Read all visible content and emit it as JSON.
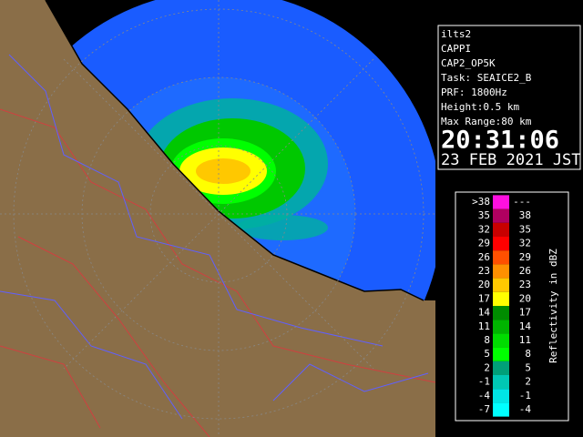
{
  "info": {
    "lines": [
      "ilts2",
      "CAPPI",
      "CAP2_OP5K",
      "Task: SEAICE2_B",
      "PRF: 1800Hz",
      "Height:0.5 km",
      "Max Range:80 km"
    ],
    "time": "20:31:06",
    "date": "23 FEB 2021 JST"
  },
  "legend": {
    "title": "Reflectivity in dBZ",
    "rows": [
      {
        "low": ">38",
        "high": "---",
        "color": "#ff10e0"
      },
      {
        "low": "35",
        "high": "38",
        "color": "#b00060"
      },
      {
        "low": "32",
        "high": "35",
        "color": "#c80000"
      },
      {
        "low": "29",
        "high": "32",
        "color": "#ff0000"
      },
      {
        "low": "26",
        "high": "29",
        "color": "#ff5000"
      },
      {
        "low": "23",
        "high": "26",
        "color": "#ff9000"
      },
      {
        "low": "20",
        "high": "23",
        "color": "#ffc800"
      },
      {
        "low": "17",
        "high": "20",
        "color": "#ffff00"
      },
      {
        "low": "14",
        "high": "17",
        "color": "#008c00"
      },
      {
        "low": "11",
        "high": "14",
        "color": "#00b400"
      },
      {
        "low": "8",
        "high": "11",
        "color": "#00dc00"
      },
      {
        "low": "5",
        "high": "8",
        "color": "#00ff00"
      },
      {
        "low": "2",
        "high": "5",
        "color": "#00a078"
      },
      {
        "low": "-1",
        "high": "2",
        "color": "#00c8b4"
      },
      {
        "low": "-4",
        "high": "-1",
        "color": "#00e6e6"
      },
      {
        "low": "-7",
        "high": "-4",
        "color": "#00ffff"
      }
    ]
  }
}
